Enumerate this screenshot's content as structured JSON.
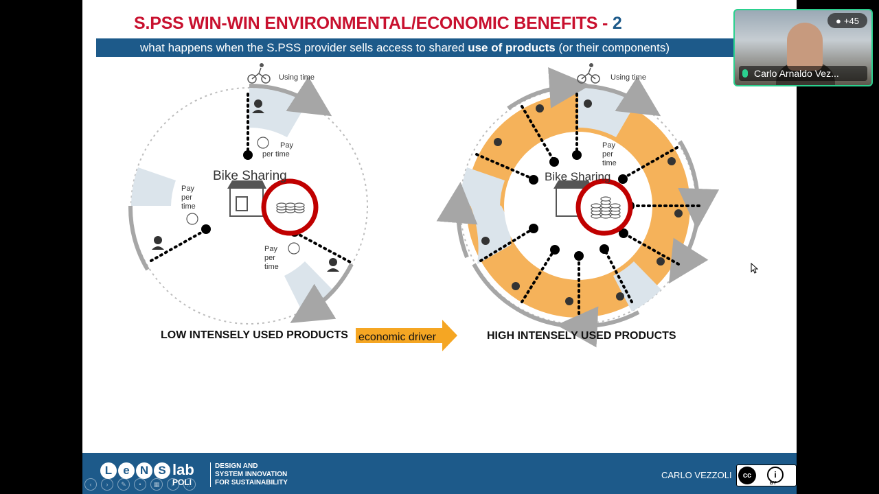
{
  "slide": {
    "title_main": "S.PSS WIN-WIN ENVIRONMENTAL/ECONOMIC BENEFITS - ",
    "title_num": "2",
    "subtitle_pre": "what happens when the S.PSS provider sells access to shared ",
    "subtitle_bold": "use of products",
    "subtitle_post": " (or their components)",
    "left_diagram": {
      "using_time": "Using  time",
      "center": "Bike Sharing",
      "pay_word": "Pay",
      "per_word": "per",
      "time_word": "time",
      "per_time": "per time"
    },
    "right_diagram": {
      "using_time": "Using  time",
      "center": "Bike Sharing"
    },
    "caption_low": "LOW INTENSELY USED PRODUCTS",
    "arrow_label": "economic driver",
    "caption_high": "HIGH INTENSELY USED PRODUCTS",
    "footer": {
      "logo_letters": [
        "L",
        "e",
        "N",
        "S"
      ],
      "logo_lab": "lab",
      "logo_poli": "POLI",
      "tagline_1": "DESIGN AND",
      "tagline_2": "SYSTEM INNOVATION",
      "tagline_3": "FOR SUSTAINABILITY",
      "author": "CARLO VEZZOLI",
      "license_cc": "cc",
      "license_by": "BY"
    },
    "colors": {
      "title_red": "#c8102e",
      "band_blue": "#1d5a8a",
      "orange": "#f5b25a",
      "light_blue": "#dbe4eb",
      "ring_red": "#c00000"
    }
  },
  "video_tile": {
    "name": "Carlo Arnaldo Vez...",
    "participants": "+45"
  }
}
